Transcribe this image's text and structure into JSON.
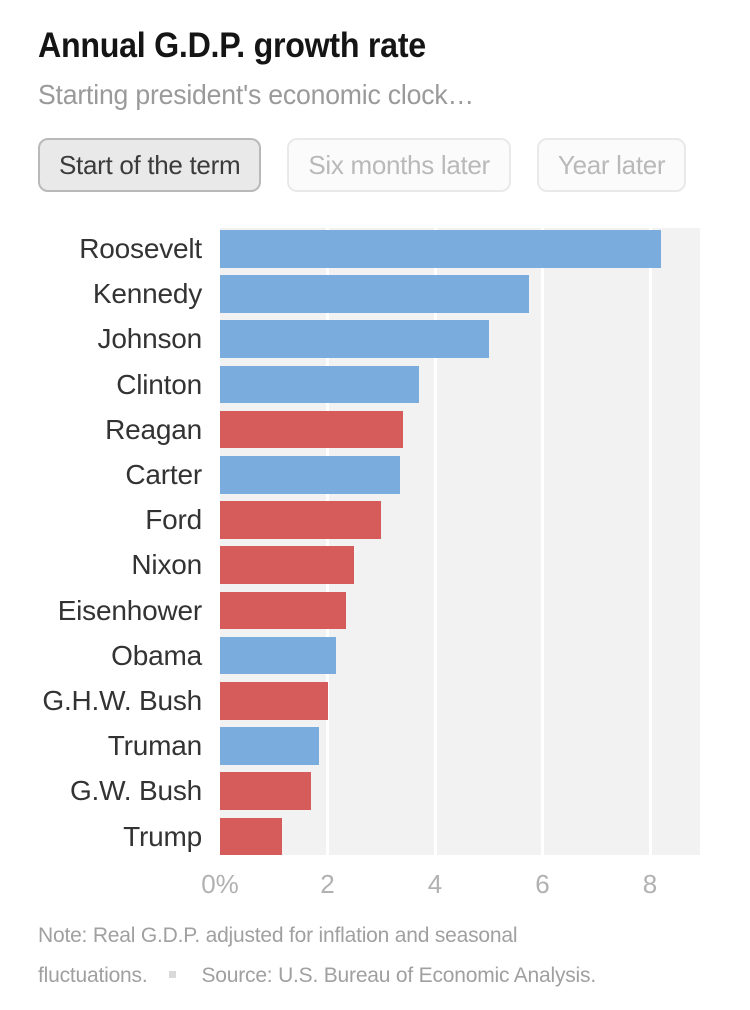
{
  "header": {
    "title": "Annual G.D.P. growth rate",
    "subtitle": "Starting president's economic clock…"
  },
  "controls": {
    "options": [
      {
        "label": "Start of the term",
        "active": true
      },
      {
        "label": "Six months later",
        "active": false
      },
      {
        "label": "Year later",
        "active": false
      }
    ]
  },
  "chart_data": {
    "type": "bar",
    "orientation": "horizontal",
    "title": "Annual G.D.P. growth rate",
    "subtitle": "Starting president's economic clock…",
    "selected_view": "Start of the term",
    "categories": [
      "Roosevelt",
      "Kennedy",
      "Johnson",
      "Clinton",
      "Reagan",
      "Carter",
      "Ford",
      "Nixon",
      "Eisenhower",
      "Obama",
      "G.H.W. Bush",
      "Truman",
      "G.W. Bush",
      "Trump"
    ],
    "values": [
      8.2,
      5.75,
      5.0,
      3.7,
      3.4,
      3.35,
      3.0,
      2.5,
      2.35,
      2.15,
      2.0,
      1.85,
      1.7,
      1.15
    ],
    "parties": [
      "D",
      "D",
      "D",
      "D",
      "R",
      "D",
      "R",
      "R",
      "R",
      "D",
      "R",
      "D",
      "R",
      "R"
    ],
    "unit": "% annual G.D.P. growth",
    "x_ticks": [
      0,
      2,
      4,
      6,
      8
    ],
    "x_tick_labels": [
      "0%",
      "2",
      "4",
      "6",
      "8"
    ],
    "xlim": [
      0,
      8.93
    ],
    "grid": "vertical white gridlines on gray panel",
    "legend": "none",
    "colors": {
      "democrat_bar": "#7aadde",
      "republican_bar": "#d65c5c",
      "panel_background": "#f2f2f2",
      "gridline": "#ffffff",
      "axis_text": "#b1b1b1",
      "label_text": "#333333"
    }
  },
  "footnote": {
    "note_line1": "Note: Real G.D.P. adjusted for inflation and seasonal",
    "note_line2": "fluctuations.",
    "source": "Source: U.S. Bureau of Economic Analysis."
  }
}
